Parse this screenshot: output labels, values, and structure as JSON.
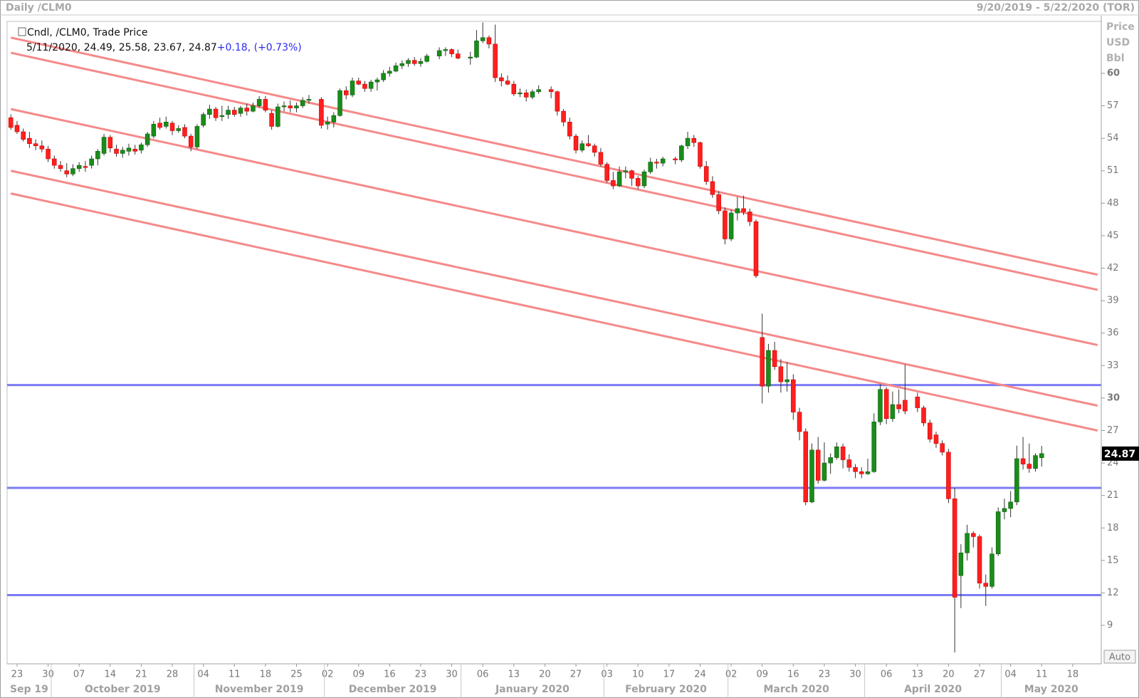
{
  "chart_data": {
    "type": "candlestick",
    "window_title": "Daily /CLM0",
    "timezone_label": "(TOR)",
    "study_label": "Cndl, /CLM0, Trade Price",
    "change": {
      "value": 0.18,
      "label": "+0.18"
    },
    "change_pct": {
      "value": 0.73,
      "label": "(+0.73%)"
    },
    "axis_units": [
      "Price",
      "USD",
      "Bbl"
    ],
    "auto_button": "Auto",
    "up_color": "#1a8c1a",
    "down_color": "#ff1f1f",
    "wick_color": "#333333",
    "x": [
      "9/20/2019",
      "9/23/2019",
      "9/24/2019",
      "9/25/2019",
      "9/26/2019",
      "9/27/2019",
      "9/30/2019",
      "10/1/2019",
      "10/2/2019",
      "10/3/2019",
      "10/4/2019",
      "10/7/2019",
      "10/8/2019",
      "10/9/2019",
      "10/10/2019",
      "10/11/2019",
      "10/14/2019",
      "10/15/2019",
      "10/16/2019",
      "10/17/2019",
      "10/18/2019",
      "10/21/2019",
      "10/22/2019",
      "10/23/2019",
      "10/24/2019",
      "10/25/2019",
      "10/28/2019",
      "10/29/2019",
      "10/30/2019",
      "10/31/2019",
      "11/1/2019",
      "11/4/2019",
      "11/5/2019",
      "11/6/2019",
      "11/7/2019",
      "11/8/2019",
      "11/11/2019",
      "11/12/2019",
      "11/13/2019",
      "11/14/2019",
      "11/15/2019",
      "11/18/2019",
      "11/19/2019",
      "11/20/2019",
      "11/21/2019",
      "11/22/2019",
      "11/25/2019",
      "11/26/2019",
      "11/27/2019",
      "11/29/2019",
      "12/2/2019",
      "12/3/2019",
      "12/4/2019",
      "12/5/2019",
      "12/6/2019",
      "12/9/2019",
      "12/10/2019",
      "12/11/2019",
      "12/12/2019",
      "12/13/2019",
      "12/16/2019",
      "12/17/2019",
      "12/18/2019",
      "12/19/2019",
      "12/20/2019",
      "12/23/2019",
      "12/24/2019",
      "12/26/2019",
      "12/27/2019",
      "12/30/2019",
      "12/31/2019",
      "1/2/2020",
      "1/3/2020",
      "1/6/2020",
      "1/7/2020",
      "1/8/2020",
      "1/9/2020",
      "1/10/2020",
      "1/13/2020",
      "1/14/2020",
      "1/15/2020",
      "1/16/2020",
      "1/17/2020",
      "1/21/2020",
      "1/22/2020",
      "1/23/2020",
      "1/24/2020",
      "1/27/2020",
      "1/28/2020",
      "1/29/2020",
      "1/30/2020",
      "1/31/2020",
      "2/3/2020",
      "2/4/2020",
      "2/5/2020",
      "2/6/2020",
      "2/7/2020",
      "2/10/2020",
      "2/11/2020",
      "2/12/2020",
      "2/13/2020",
      "2/14/2020",
      "2/18/2020",
      "2/19/2020",
      "2/20/2020",
      "2/21/2020",
      "2/24/2020",
      "2/25/2020",
      "2/26/2020",
      "2/27/2020",
      "2/28/2020",
      "3/2/2020",
      "3/3/2020",
      "3/4/2020",
      "3/5/2020",
      "3/6/2020",
      "3/9/2020",
      "3/10/2020",
      "3/11/2020",
      "3/12/2020",
      "3/13/2020",
      "3/16/2020",
      "3/17/2020",
      "3/18/2020",
      "3/19/2020",
      "3/20/2020",
      "3/23/2020",
      "3/24/2020",
      "3/25/2020",
      "3/26/2020",
      "3/27/2020",
      "3/30/2020",
      "3/31/2020",
      "4/1/2020",
      "4/2/2020",
      "4/3/2020",
      "4/6/2020",
      "4/7/2020",
      "4/8/2020",
      "4/9/2020",
      "4/13/2020",
      "4/14/2020",
      "4/15/2020",
      "4/16/2020",
      "4/17/2020",
      "4/20/2020",
      "4/21/2020",
      "4/22/2020",
      "4/23/2020",
      "4/24/2020",
      "4/27/2020",
      "4/28/2020",
      "4/29/2020",
      "4/30/2020",
      "5/1/2020",
      "5/4/2020",
      "5/5/2020",
      "5/6/2020",
      "5/7/2020",
      "5/8/2020",
      "5/11/2020"
    ],
    "open": [
      55.9,
      55.2,
      54.6,
      54.0,
      53.5,
      53.3,
      53.0,
      52.1,
      51.5,
      51.0,
      50.7,
      51.2,
      51.4,
      51.5,
      52.1,
      52.6,
      54.1,
      53.0,
      52.6,
      52.8,
      53.0,
      52.9,
      53.4,
      54.2,
      55.4,
      55.1,
      55.4,
      54.7,
      55.0,
      54.2,
      53.2,
      55.2,
      56.2,
      56.7,
      56.0,
      56.2,
      56.6,
      56.3,
      56.8,
      56.5,
      57.0,
      57.6,
      56.3,
      55.1,
      56.9,
      57.0,
      56.8,
      57.0,
      57.5,
      57.6,
      55.3,
      55.5,
      56.1,
      58.4,
      58.0,
      59.3,
      59.0,
      58.6,
      59.2,
      59.4,
      60.0,
      60.2,
      60.7,
      60.9,
      61.2,
      60.9,
      61.1,
      61.6,
      62.1,
      62.2,
      61.8,
      61.4,
      61.5,
      63.0,
      63.3,
      62.7,
      59.6,
      59.3,
      59.0,
      58.1,
      58.2,
      57.8,
      58.3,
      58.5,
      58.3,
      56.5,
      55.5,
      54.2,
      52.9,
      53.5,
      53.3,
      52.7,
      51.6,
      50.1,
      49.6,
      50.9,
      51.0,
      50.3,
      49.6,
      50.9,
      51.8,
      51.7,
      52.1,
      52.0,
      53.3,
      54.0,
      53.6,
      51.4,
      50.0,
      48.8,
      47.3,
      44.7,
      47.1,
      47.5,
      47.2,
      46.3,
      35.6,
      31.1,
      34.4,
      32.9,
      31.5,
      31.7,
      28.7,
      26.9,
      20.4,
      25.2,
      22.4,
      24.0,
      24.5,
      25.5,
      24.3,
      23.6,
      23.2,
      23.0,
      23.2,
      27.8,
      30.8,
      28.1,
      29.4,
      29.8,
      30.1,
      29.1,
      27.7,
      26.6,
      25.8,
      25.0,
      20.7,
      13.6,
      15.7,
      17.5,
      17.2,
      12.9,
      12.6,
      15.6,
      19.5,
      19.8,
      20.4,
      24.4,
      23.9,
      23.5,
      24.49
    ],
    "high": [
      56.2,
      55.6,
      54.9,
      54.6,
      53.9,
      53.8,
      53.3,
      52.4,
      51.9,
      51.7,
      51.6,
      51.8,
      51.9,
      52.4,
      53.0,
      54.4,
      54.3,
      53.4,
      53.2,
      53.5,
      53.4,
      53.6,
      54.6,
      55.6,
      55.9,
      56.0,
      55.6,
      55.2,
      55.3,
      54.4,
      55.3,
      56.4,
      57.1,
      56.9,
      57.0,
      57.0,
      56.9,
      57.0,
      57.2,
      57.3,
      57.9,
      57.9,
      56.6,
      57.2,
      57.4,
      57.5,
      57.3,
      57.8,
      58.0,
      57.8,
      56.0,
      56.4,
      58.6,
      58.8,
      59.6,
      59.6,
      59.3,
      59.4,
      59.6,
      60.3,
      60.6,
      61.0,
      61.2,
      61.4,
      61.5,
      61.4,
      61.8,
      62.4,
      62.4,
      62.3,
      62.2,
      62.0,
      64.0,
      64.7,
      63.5,
      64.5,
      60.0,
      59.8,
      59.3,
      58.6,
      58.5,
      58.5,
      58.9,
      58.8,
      58.4,
      56.7,
      55.9,
      54.4,
      53.8,
      54.3,
      53.5,
      53.1,
      51.8,
      50.9,
      51.4,
      51.4,
      51.1,
      50.5,
      51.1,
      52.2,
      52.1,
      52.3,
      52.3,
      53.4,
      54.6,
      54.3,
      53.7,
      51.9,
      50.5,
      49.1,
      47.6,
      47.4,
      48.6,
      48.7,
      47.5,
      46.5,
      37.8,
      35.0,
      35.2,
      33.6,
      33.3,
      32.2,
      29.1,
      27.2,
      25.8,
      26.4,
      25.9,
      24.9,
      25.9,
      25.8,
      24.8,
      23.9,
      23.6,
      24.4,
      28.6,
      31.3,
      31.0,
      30.6,
      30.8,
      33.1,
      30.5,
      29.3,
      28.0,
      26.9,
      26.1,
      25.3,
      21.7,
      16.5,
      18.3,
      17.7,
      17.4,
      13.7,
      16.2,
      19.9,
      20.7,
      21.4,
      25.6,
      26.4,
      25.8,
      24.9,
      25.58
    ],
    "low": [
      54.8,
      54.4,
      53.7,
      53.1,
      52.9,
      52.7,
      51.8,
      51.2,
      50.9,
      50.4,
      50.5,
      50.9,
      50.9,
      51.2,
      51.5,
      52.4,
      52.7,
      52.3,
      52.2,
      52.4,
      52.5,
      52.6,
      53.2,
      54.0,
      54.8,
      54.9,
      54.3,
      54.5,
      54.0,
      52.8,
      53.0,
      55.0,
      55.8,
      55.6,
      55.6,
      55.8,
      56.0,
      56.0,
      56.1,
      56.4,
      56.8,
      56.4,
      54.8,
      55.0,
      56.5,
      56.4,
      56.4,
      56.8,
      57.2,
      54.9,
      54.8,
      55.0,
      56.0,
      57.6,
      57.8,
      58.9,
      58.3,
      58.3,
      58.4,
      59.2,
      59.7,
      60.1,
      60.4,
      60.6,
      60.7,
      60.6,
      61.0,
      61.3,
      61.6,
      61.5,
      61.3,
      60.8,
      61.4,
      62.8,
      62.3,
      59.2,
      58.8,
      58.9,
      57.9,
      57.8,
      57.4,
      57.6,
      58.1,
      57.7,
      56.1,
      55.1,
      53.9,
      52.6,
      52.7,
      53.2,
      52.3,
      51.4,
      49.9,
      49.3,
      49.5,
      50.3,
      49.6,
      49.3,
      49.4,
      50.7,
      51.2,
      51.4,
      51.6,
      51.8,
      53.0,
      53.2,
      51.2,
      49.7,
      48.5,
      47.0,
      44.2,
      44.5,
      46.4,
      46.9,
      45.9,
      41.1,
      29.5,
      30.5,
      32.6,
      30.5,
      30.6,
      28.0,
      26.1,
      20.1,
      20.3,
      22.1,
      22.3,
      23.0,
      24.3,
      23.5,
      23.2,
      22.6,
      22.6,
      22.9,
      23.1,
      27.5,
      27.6,
      27.8,
      28.6,
      28.5,
      28.7,
      27.4,
      25.9,
      25.4,
      24.7,
      20.3,
      6.5,
      10.6,
      15.0,
      16.2,
      12.4,
      10.8,
      12.4,
      15.4,
      18.8,
      19.0,
      20.1,
      23.4,
      23.1,
      23.2,
      23.67
    ],
    "close": [
      55.0,
      54.6,
      53.9,
      53.5,
      53.3,
      53.0,
      52.1,
      51.5,
      51.2,
      50.7,
      51.2,
      51.5,
      51.3,
      52.1,
      52.8,
      54.1,
      53.1,
      52.6,
      52.9,
      53.1,
      52.8,
      53.4,
      54.4,
      55.3,
      55.0,
      55.5,
      54.7,
      54.9,
      54.2,
      53.2,
      55.1,
      56.2,
      56.7,
      55.9,
      56.1,
      56.6,
      56.2,
      56.8,
      56.5,
      57.0,
      57.6,
      56.6,
      55.1,
      56.9,
      57.0,
      56.8,
      57.0,
      57.5,
      57.6,
      55.2,
      55.5,
      56.1,
      58.4,
      58.0,
      59.3,
      59.0,
      58.6,
      59.2,
      59.4,
      60.0,
      60.2,
      60.7,
      60.9,
      61.2,
      60.9,
      61.1,
      61.6,
      62.1,
      62.2,
      61.8,
      61.4,
      61.5,
      63.0,
      63.3,
      62.7,
      59.6,
      59.3,
      59.0,
      58.1,
      58.2,
      57.8,
      58.3,
      58.5,
      58.3,
      56.5,
      55.5,
      54.2,
      52.9,
      53.5,
      53.3,
      52.7,
      51.6,
      50.1,
      49.6,
      50.9,
      51.0,
      50.3,
      49.6,
      50.9,
      51.8,
      51.7,
      52.1,
      52.0,
      53.3,
      54.0,
      53.6,
      51.4,
      50.0,
      48.8,
      47.3,
      44.7,
      47.1,
      47.5,
      47.2,
      46.3,
      41.3,
      31.1,
      34.4,
      32.9,
      31.5,
      31.7,
      28.7,
      26.9,
      20.4,
      25.2,
      22.4,
      24.0,
      24.5,
      25.5,
      24.3,
      23.6,
      23.2,
      23.0,
      23.2,
      27.8,
      30.8,
      28.1,
      29.4,
      29.0,
      28.8,
      29.1,
      27.7,
      26.2,
      25.8,
      25.0,
      20.7,
      11.6,
      15.7,
      17.5,
      17.2,
      12.9,
      12.6,
      15.6,
      19.5,
      19.8,
      20.4,
      24.4,
      23.9,
      23.5,
      24.69,
      24.87
    ],
    "xlim": [
      "9/20/2019",
      "5/22/2020"
    ],
    "ylim": [
      5.45,
      64.8
    ],
    "yticks": [
      60,
      57,
      54,
      51,
      48,
      45,
      42,
      39,
      36,
      33,
      30,
      27,
      24,
      21,
      18,
      15,
      12,
      9
    ],
    "xticks": [
      {
        "value": "9/23/2019",
        "label": "23"
      },
      {
        "value": "9/30/2019",
        "label": "30"
      },
      {
        "value": "10/7/2019",
        "label": "07"
      },
      {
        "value": "10/14/2019",
        "label": "14"
      },
      {
        "value": "10/21/2019",
        "label": "21"
      },
      {
        "value": "10/28/2019",
        "label": "28"
      },
      {
        "value": "11/4/2019",
        "label": "04"
      },
      {
        "value": "11/11/2019",
        "label": "11"
      },
      {
        "value": "11/18/2019",
        "label": "18"
      },
      {
        "value": "11/25/2019",
        "label": "25"
      },
      {
        "value": "12/2/2019",
        "label": "02"
      },
      {
        "value": "12/9/2019",
        "label": "09"
      },
      {
        "value": "12/16/2019",
        "label": "16"
      },
      {
        "value": "12/23/2019",
        "label": "23"
      },
      {
        "value": "12/30/2019",
        "label": "30"
      },
      {
        "value": "1/6/2020",
        "label": "06"
      },
      {
        "value": "1/13/2020",
        "label": "13"
      },
      {
        "value": "1/20/2020",
        "label": "20"
      },
      {
        "value": "1/27/2020",
        "label": "27"
      },
      {
        "value": "2/3/2020",
        "label": "03"
      },
      {
        "value": "2/10/2020",
        "label": "10"
      },
      {
        "value": "2/17/2020",
        "label": "17"
      },
      {
        "value": "2/24/2020",
        "label": "24"
      },
      {
        "value": "3/2/2020",
        "label": "02"
      },
      {
        "value": "3/9/2020",
        "label": "09"
      },
      {
        "value": "3/16/2020",
        "label": "16"
      },
      {
        "value": "3/23/2020",
        "label": "23"
      },
      {
        "value": "3/30/2020",
        "label": "30"
      },
      {
        "value": "4/6/2020",
        "label": "06"
      },
      {
        "value": "4/13/2020",
        "label": "13"
      },
      {
        "value": "4/20/2020",
        "label": "20"
      },
      {
        "value": "4/27/2020",
        "label": "27"
      },
      {
        "value": "5/4/2020",
        "label": "04"
      },
      {
        "value": "5/11/2020",
        "label": "11"
      },
      {
        "value": "5/18/2020",
        "label": "18"
      }
    ],
    "months": [
      {
        "value": "9/20/2019",
        "label": "Sep 19"
      },
      {
        "value": "10/1/2019",
        "label": "October 2019"
      },
      {
        "value": "11/1/2019",
        "label": "November 2019"
      },
      {
        "value": "12/2/2019",
        "label": "December 2019"
      },
      {
        "value": "1/1/2020",
        "label": "January 2020"
      },
      {
        "value": "2/3/2020",
        "label": "February 2020"
      },
      {
        "value": "3/2/2020",
        "label": "March 2020"
      },
      {
        "value": "4/1/2020",
        "label": "April 2020"
      },
      {
        "value": "5/1/2020",
        "label": "May 2020"
      }
    ],
    "hlines": [
      31.2,
      21.7,
      11.8
    ],
    "hline_color": "#7b7bf5",
    "trendline_color": "#f58a8a",
    "trendlines": [
      {
        "x": [
          "9/20/2019",
          "5/22/2020"
        ],
        "y": [
          63.3,
          41.4
        ]
      },
      {
        "x": [
          "9/20/2019",
          "5/22/2020"
        ],
        "y": [
          61.9,
          40.0
        ]
      },
      {
        "x": [
          "9/20/2019",
          "5/22/2020"
        ],
        "y": [
          56.7,
          34.9
        ]
      },
      {
        "x": [
          "9/20/2019",
          "5/22/2020"
        ],
        "y": [
          51.0,
          29.3
        ]
      },
      {
        "x": [
          "9/20/2019",
          "5/22/2020"
        ],
        "y": [
          48.9,
          27.0
        ]
      }
    ]
  }
}
